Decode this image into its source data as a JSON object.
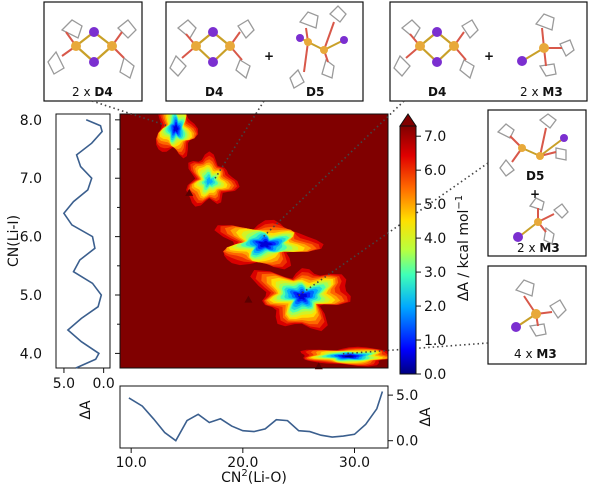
{
  "chart_data": {
    "type": "heatmap",
    "title": "",
    "xlabel_main": "CN",
    "xlabel_sup": "2",
    "xlabel_rest": "(Li-O)",
    "ylabel": "CN(Li-I)",
    "colorbar_label": "ΔA / kcal mol",
    "colorbar_sup": "−1",
    "xlim": [
      9.0,
      33.0
    ],
    "ylim": [
      3.75,
      8.1
    ],
    "x_ticks": [
      "10.0",
      "20.0",
      "30.0"
    ],
    "x_tick_values": [
      10,
      20,
      30
    ],
    "y_ticks": [
      "8.0",
      "7.0",
      "6.0",
      "5.0",
      "4.0"
    ],
    "y_tick_values": [
      8,
      7,
      6,
      5,
      4
    ],
    "colorbar_ticks": [
      "7.0",
      "6.0",
      "5.0",
      "4.0",
      "3.0",
      "2.0",
      "1.0",
      "0.0"
    ],
    "colorbar_tick_values": [
      7,
      6,
      5,
      4,
      3,
      2,
      1,
      0
    ],
    "colorbar_range": [
      0,
      7.3
    ],
    "basins": [
      {
        "x": 14.0,
        "y": 7.85,
        "depth": 0.3
      },
      {
        "x": 17.0,
        "y": 6.95,
        "depth": 1.8
      },
      {
        "x": 22.0,
        "y": 5.87,
        "depth": 0.2
      },
      {
        "x": 25.3,
        "y": 4.98,
        "depth": 0.4
      },
      {
        "x": 29.5,
        "y": 3.95,
        "depth": 0.0
      }
    ],
    "minima_markers": [
      {
        "x": 15.2,
        "y": 6.75
      },
      {
        "x": 20.5,
        "y": 4.92
      },
      {
        "x": 26.8,
        "y": 3.78
      }
    ],
    "projection_x": {
      "label": "ΔA",
      "ticks": [
        "5.0",
        "0.0"
      ],
      "tick_values": [
        5,
        0
      ],
      "ylim": [
        -0.8,
        6.0
      ],
      "x": [
        9.8,
        11,
        12,
        13,
        14,
        15,
        16,
        17,
        18,
        19,
        20,
        21,
        22,
        23,
        24,
        25,
        26,
        27,
        28,
        29,
        30,
        31,
        32,
        32.5
      ],
      "values": [
        4.7,
        3.8,
        2.4,
        0.9,
        0.0,
        2.2,
        2.9,
        2.0,
        2.4,
        1.6,
        1.1,
        1.0,
        1.3,
        2.3,
        2.2,
        1.1,
        1.0,
        0.6,
        0.4,
        0.5,
        0.7,
        1.8,
        3.5,
        5.4
      ]
    },
    "projection_y": {
      "label": "ΔA",
      "ticks": [
        "5.0",
        "0.0"
      ],
      "tick_values": [
        5,
        0
      ],
      "xlim": [
        6.0,
        -0.8
      ],
      "y": [
        3.75,
        3.9,
        4.0,
        4.2,
        4.4,
        4.6,
        4.8,
        5.0,
        5.2,
        5.4,
        5.6,
        5.8,
        6.0,
        6.2,
        6.4,
        6.6,
        6.8,
        7.0,
        7.2,
        7.4,
        7.6,
        7.8,
        7.9,
        8.0
      ],
      "values": [
        3.5,
        1.0,
        0.6,
        2.8,
        4.5,
        2.8,
        0.7,
        0.3,
        1.4,
        3.8,
        3.0,
        1.1,
        1.4,
        4.0,
        5.0,
        3.8,
        2.0,
        1.5,
        2.9,
        3.4,
        1.5,
        0.2,
        0.4,
        2.2
      ]
    }
  },
  "panels": [
    {
      "items": [
        {
          "prefix": "2 x ",
          "bold": "D4"
        }
      ]
    },
    {
      "items": [
        {
          "prefix": "",
          "bold": "D4"
        },
        {
          "prefix": "",
          "bold": "D5"
        }
      ],
      "plus": "+"
    },
    {
      "items": [
        {
          "prefix": "",
          "bold": "D4"
        },
        {
          "prefix": "2 x ",
          "bold": "M3"
        }
      ],
      "plus": "+"
    },
    {
      "items": [
        {
          "prefix": "",
          "bold": "D5"
        },
        {
          "prefix": "2 x ",
          "bold": "M3"
        }
      ],
      "plus": "+"
    },
    {
      "items": [
        {
          "prefix": "4 x ",
          "bold": "M3"
        }
      ]
    }
  ],
  "colors": {
    "background_dark_red": "#800000",
    "projection_line": "#3b5f8e",
    "li_atom": "#e8a93a",
    "i_atom": "#7b2fd0",
    "o_atom": "#d8584a",
    "ligand": "#9a9a9a"
  }
}
